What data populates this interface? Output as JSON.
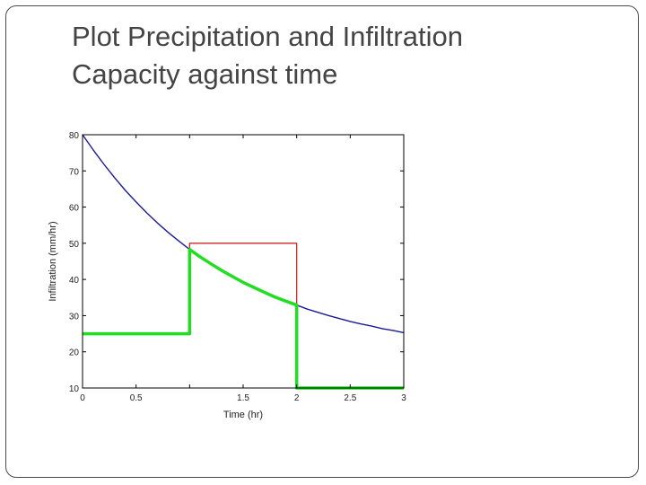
{
  "slide": {
    "title_line1": "Plot Precipitation and Infiltration",
    "title_line2": "Capacity against time"
  },
  "chart_data": {
    "type": "line",
    "xlabel": "Time (hr)",
    "ylabel": "Infiltration (mm/hr)",
    "xlim": [
      0,
      3
    ],
    "ylim": [
      10,
      80
    ],
    "xticks": [
      0,
      0.5,
      1,
      1.5,
      2,
      2.5,
      3
    ],
    "xtick_labels": [
      "0",
      "0.5",
      "",
      "1.5",
      "2",
      "2.5",
      "3"
    ],
    "yticks": [
      10,
      20,
      30,
      40,
      50,
      60,
      70,
      80
    ],
    "ytick_labels": [
      "10",
      "20",
      "30",
      "40",
      "50",
      "60",
      "70",
      "80"
    ],
    "grid": false,
    "series": [
      {
        "role": "infiltration-capacity",
        "color": "#1a1a9c",
        "x": [
          0,
          0.1,
          0.2,
          0.3,
          0.4,
          0.5,
          0.6,
          0.7,
          0.8,
          0.9,
          1.0,
          1.1,
          1.2,
          1.3,
          1.4,
          1.5,
          1.6,
          1.7,
          1.8,
          1.9,
          2.0,
          2.1,
          2.2,
          2.3,
          2.4,
          2.5,
          2.6,
          2.7,
          2.8,
          2.9,
          3.0
        ],
        "y": [
          80.0,
          75.8,
          71.8,
          68.1,
          64.6,
          61.4,
          58.4,
          55.6,
          53.0,
          50.6,
          48.3,
          46.2,
          44.3,
          42.5,
          40.8,
          39.2,
          37.8,
          36.4,
          35.1,
          34.0,
          32.9,
          31.8,
          30.9,
          30.0,
          29.2,
          28.4,
          27.7,
          27.1,
          26.4,
          25.9,
          25.3
        ]
      },
      {
        "role": "precipitation",
        "color": "#cc1111",
        "x": [
          0,
          1.0,
          1.0,
          2.0,
          2.0,
          3.0
        ],
        "y": [
          25,
          25,
          50,
          50,
          10,
          10
        ]
      },
      {
        "role": "infiltration-rate",
        "color": "#22dd22",
        "x": [
          0,
          1.0,
          1.0,
          1.1,
          1.2,
          1.3,
          1.4,
          1.5,
          1.6,
          1.7,
          1.8,
          1.9,
          2.0,
          2.0,
          3.0
        ],
        "y": [
          25,
          25,
          48.3,
          46.2,
          44.3,
          42.5,
          40.8,
          39.2,
          37.8,
          36.4,
          35.1,
          34.0,
          32.9,
          10,
          10
        ]
      }
    ]
  }
}
